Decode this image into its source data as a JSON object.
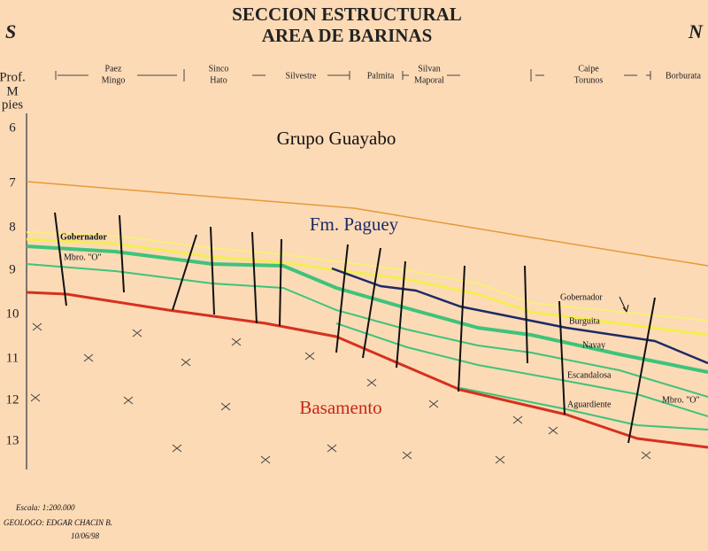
{
  "header": {
    "title": "SECCION ESTRUCTURAL",
    "subtitle": "AREA DE BARINAS",
    "left": "S",
    "right": "N"
  },
  "locations": [
    [
      "Paez",
      "Mingo"
    ],
    [
      "Sinco",
      "Hato"
    ],
    [
      "Silvestre"
    ],
    [
      "Palmita"
    ],
    [
      "Silvan",
      "Maporal"
    ],
    [
      "Caipe",
      "Torunos"
    ],
    [
      "Borburata"
    ]
  ],
  "depth": {
    "label": [
      "Prof.",
      "M",
      "pies"
    ],
    "ticks": [
      "6",
      "7",
      "8",
      "9",
      "10",
      "11",
      "12",
      "13"
    ]
  },
  "formations": {
    "top": "Grupo Guayabo",
    "middle": "Fm. Paguey",
    "base": "Basamento"
  },
  "members": [
    "Gobernador",
    "Mbro. \"O\"",
    "Gobernador",
    "Burguita",
    "Navay",
    "Escandalosa",
    "Aguardiente",
    "Mbro. \"O\""
  ],
  "footer": {
    "scale": "Escala: 1:200.000",
    "geologist": "GEOLOGO: EDGAR CHACIN B.",
    "date": "10/06/98"
  }
}
